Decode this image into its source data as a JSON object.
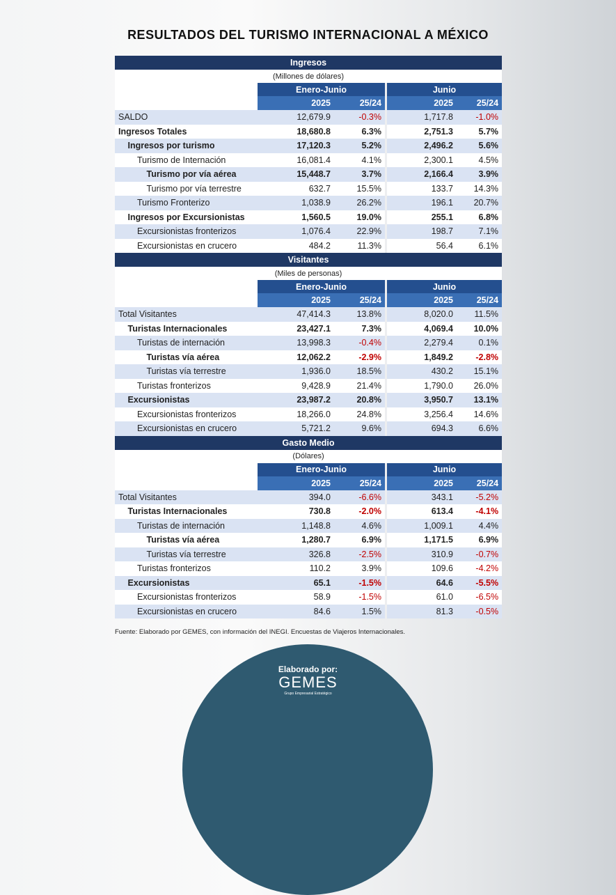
{
  "title": "RESULTADOS DEL TURISMO INTERNACIONAL A MÉXICO",
  "sections": [
    {
      "title": "Ingresos",
      "unit": "(Millones de dólares)",
      "groups": [
        "Enero-Junio",
        "Junio"
      ],
      "columns": [
        "2025",
        "25/24",
        "2025",
        "25/24"
      ],
      "rows": [
        {
          "label": "SALDO",
          "level": 0,
          "bold": false,
          "values": [
            "12,679.9",
            "-0.3%",
            "1,717.8",
            "-1.0%"
          ]
        },
        {
          "label": "Ingresos Totales",
          "level": 0,
          "bold": true,
          "values": [
            "18,680.8",
            "6.3%",
            "2,751.3",
            "5.7%"
          ]
        },
        {
          "label": "Ingresos por turismo",
          "level": 1,
          "bold": true,
          "values": [
            "17,120.3",
            "5.2%",
            "2,496.2",
            "5.6%"
          ]
        },
        {
          "label": "Turismo de Internación",
          "level": 2,
          "bold": false,
          "values": [
            "16,081.4",
            "4.1%",
            "2,300.1",
            "4.5%"
          ]
        },
        {
          "label": "Turismo por vía aérea",
          "level": 3,
          "bold": true,
          "values": [
            "15,448.7",
            "3.7%",
            "2,166.4",
            "3.9%"
          ]
        },
        {
          "label": "Turismo por vía terrestre",
          "level": 3,
          "bold": false,
          "values": [
            "632.7",
            "15.5%",
            "133.7",
            "14.3%"
          ]
        },
        {
          "label": "Turismo Fronterizo",
          "level": 2,
          "bold": false,
          "values": [
            "1,038.9",
            "26.2%",
            "196.1",
            "20.7%"
          ]
        },
        {
          "label": "Ingresos por Excursionistas",
          "level": 1,
          "bold": true,
          "values": [
            "1,560.5",
            "19.0%",
            "255.1",
            "6.8%"
          ]
        },
        {
          "label": "Excursionistas fronterizos",
          "level": 2,
          "bold": false,
          "values": [
            "1,076.4",
            "22.9%",
            "198.7",
            "7.1%"
          ]
        },
        {
          "label": "Excursionistas en crucero",
          "level": 2,
          "bold": false,
          "values": [
            "484.2",
            "11.3%",
            "56.4",
            "6.1%"
          ]
        }
      ]
    },
    {
      "title": "Visitantes",
      "unit": "(Miles de personas)",
      "groups": [
        "Enero-Junio",
        "Junio"
      ],
      "columns": [
        "2025",
        "25/24",
        "2025",
        "25/24"
      ],
      "rows": [
        {
          "label": "Total Visitantes",
          "level": 0,
          "bold": false,
          "values": [
            "47,414.3",
            "13.8%",
            "8,020.0",
            "11.5%"
          ]
        },
        {
          "label": "Turistas Internacionales",
          "level": 1,
          "bold": true,
          "values": [
            "23,427.1",
            "7.3%",
            "4,069.4",
            "10.0%"
          ]
        },
        {
          "label": "Turistas de internación",
          "level": 2,
          "bold": false,
          "values": [
            "13,998.3",
            "-0.4%",
            "2,279.4",
            "0.1%"
          ]
        },
        {
          "label": "Turistas vía aérea",
          "level": 3,
          "bold": true,
          "values": [
            "12,062.2",
            "-2.9%",
            "1,849.2",
            "-2.8%"
          ]
        },
        {
          "label": "Turistas vía terrestre",
          "level": 3,
          "bold": false,
          "values": [
            "1,936.0",
            "18.5%",
            "430.2",
            "15.1%"
          ]
        },
        {
          "label": "Turistas fronterizos",
          "level": 2,
          "bold": false,
          "values": [
            "9,428.9",
            "21.4%",
            "1,790.0",
            "26.0%"
          ]
        },
        {
          "label": "Excursionistas",
          "level": 1,
          "bold": true,
          "values": [
            "23,987.2",
            "20.8%",
            "3,950.7",
            "13.1%"
          ]
        },
        {
          "label": "Excursionistas fronterizos",
          "level": 2,
          "bold": false,
          "values": [
            "18,266.0",
            "24.8%",
            "3,256.4",
            "14.6%"
          ]
        },
        {
          "label": "Excursionistas en crucero",
          "level": 2,
          "bold": false,
          "values": [
            "5,721.2",
            "9.6%",
            "694.3",
            "6.6%"
          ]
        }
      ]
    },
    {
      "title": "Gasto Medio",
      "unit": "(Dólares)",
      "groups": [
        "Enero-Junio",
        "Junio"
      ],
      "columns": [
        "2025",
        "25/24",
        "2025",
        "25/24"
      ],
      "rows": [
        {
          "label": "Total Visitantes",
          "level": 0,
          "bold": false,
          "values": [
            "394.0",
            "-6.6%",
            "343.1",
            "-5.2%"
          ]
        },
        {
          "label": "Turistas Internacionales",
          "level": 1,
          "bold": true,
          "values": [
            "730.8",
            "-2.0%",
            "613.4",
            "-4.1%"
          ]
        },
        {
          "label": "Turistas de internación",
          "level": 2,
          "bold": false,
          "values": [
            "1,148.8",
            "4.6%",
            "1,009.1",
            "4.4%"
          ]
        },
        {
          "label": "Turistas vía aérea",
          "level": 3,
          "bold": true,
          "values": [
            "1,280.7",
            "6.9%",
            "1,171.5",
            "6.9%"
          ]
        },
        {
          "label": "Turistas vía terrestre",
          "level": 3,
          "bold": false,
          "values": [
            "326.8",
            "-2.5%",
            "310.9",
            "-0.7%"
          ]
        },
        {
          "label": "Turistas fronterizos",
          "level": 2,
          "bold": false,
          "values": [
            "110.2",
            "3.9%",
            "109.6",
            "-4.2%"
          ]
        },
        {
          "label": "Excursionistas",
          "level": 1,
          "bold": true,
          "values": [
            "65.1",
            "-1.5%",
            "64.6",
            "-5.5%"
          ]
        },
        {
          "label": "Excursionistas fronterizos",
          "level": 2,
          "bold": false,
          "values": [
            "58.9",
            "-1.5%",
            "61.0",
            "-6.5%"
          ]
        },
        {
          "label": "Excursionistas en crucero",
          "level": 2,
          "bold": false,
          "values": [
            "84.6",
            "1.5%",
            "81.3",
            "-0.5%"
          ]
        }
      ]
    }
  ],
  "source": "Fuente: Elaborado por GEMES, con información del INEGI. Encuestas de Viajeros Internacionales.",
  "footer": {
    "label": "Elaborado por:",
    "brand": "GEMES",
    "tagline": "Grupo Empresarial Estratégico"
  }
}
